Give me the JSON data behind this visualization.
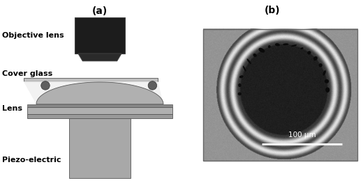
{
  "fig_width": 5.2,
  "fig_height": 2.63,
  "dpi": 100,
  "background_color": "#ffffff",
  "label_a": "(a)",
  "label_b": "(b)",
  "text_objective": "Objective lens",
  "text_cover": "Cover glass",
  "text_lens": "Lens",
  "text_piezo": "Piezo-electric",
  "scale_bar_text": "100 μm",
  "colors": {
    "objective_dark": "#1c1c1c",
    "objective_foot": "#2a2a2a",
    "cover_gray": "#c0c0c0",
    "lens_body": "#b0b0b0",
    "lens_light": "#d0d0d0",
    "gap_fill": "#eeeeee",
    "particle": "#606060",
    "piezo_body": "#a8a8a8",
    "piezo_dark": "#888888",
    "bg": "#ffffff"
  }
}
